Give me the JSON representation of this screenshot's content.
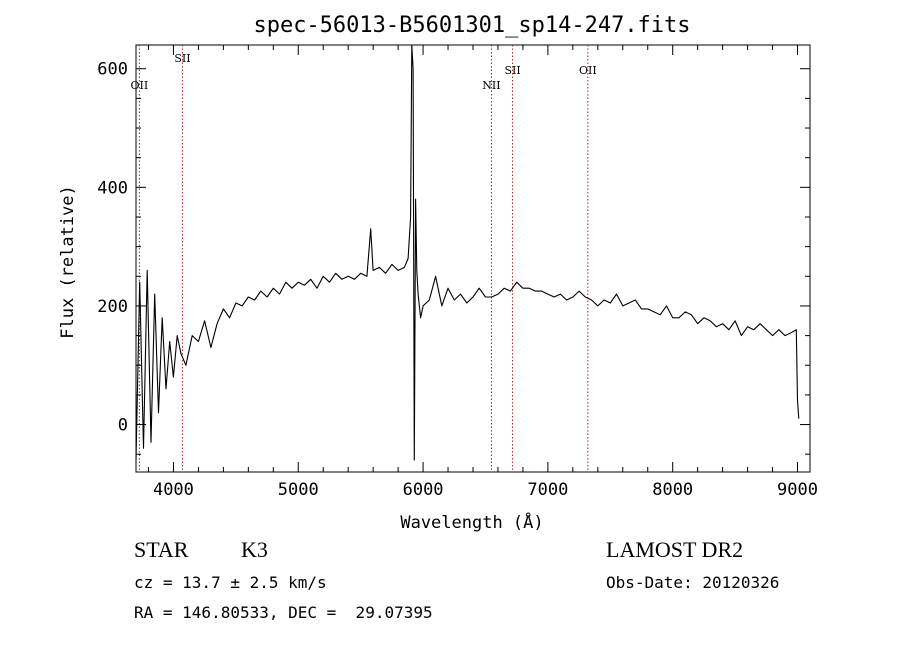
{
  "chart_data": {
    "type": "line",
    "title": "spec-56013-B5601301_sp14-247.fits",
    "xlabel": "Wavelength (Å)",
    "ylabel": "Flux (relative)",
    "xlim": [
      3700,
      9100
    ],
    "ylim": [
      -80,
      640
    ],
    "x_ticks": [
      4000,
      5000,
      6000,
      7000,
      8000,
      9000
    ],
    "y_ticks": [
      0,
      200,
      400,
      600
    ],
    "grid": false,
    "series": [
      {
        "x": [
          3700,
          3730,
          3760,
          3790,
          3820,
          3850,
          3880,
          3910,
          3940,
          3970,
          4000,
          4030,
          4060,
          4100,
          4150,
          4200,
          4250,
          4300,
          4350,
          4400,
          4450,
          4500,
          4550,
          4600,
          4650,
          4700,
          4750,
          4800,
          4850,
          4900,
          4950,
          5000,
          5050,
          5100,
          5150,
          5200,
          5250,
          5300,
          5350,
          5400,
          5450,
          5500,
          5550,
          5580,
          5600,
          5650,
          5700,
          5750,
          5800,
          5850,
          5880,
          5900,
          5910,
          5920,
          5930,
          5940,
          5950,
          5960,
          5980,
          6000,
          6050,
          6100,
          6150,
          6200,
          6250,
          6300,
          6350,
          6400,
          6450,
          6500,
          6550,
          6600,
          6650,
          6700,
          6750,
          6800,
          6850,
          6900,
          6950,
          7000,
          7050,
          7100,
          7150,
          7200,
          7250,
          7300,
          7350,
          7400,
          7450,
          7500,
          7550,
          7600,
          7650,
          7700,
          7750,
          7800,
          7850,
          7900,
          7950,
          8000,
          8050,
          8100,
          8150,
          8200,
          8250,
          8300,
          8350,
          8400,
          8450,
          8500,
          8550,
          8600,
          8650,
          8700,
          8750,
          8800,
          8850,
          8900,
          8950,
          8990,
          9000,
          9010
        ],
        "y": [
          -60,
          240,
          -40,
          260,
          -30,
          220,
          20,
          180,
          60,
          140,
          80,
          150,
          120,
          100,
          150,
          140,
          175,
          130,
          170,
          195,
          180,
          205,
          200,
          215,
          210,
          225,
          215,
          230,
          220,
          240,
          230,
          240,
          235,
          245,
          230,
          250,
          240,
          255,
          245,
          250,
          245,
          255,
          250,
          330,
          260,
          265,
          255,
          270,
          260,
          265,
          280,
          350,
          640,
          600,
          -60,
          380,
          260,
          220,
          180,
          200,
          210,
          250,
          200,
          230,
          210,
          220,
          205,
          215,
          230,
          215,
          215,
          220,
          230,
          225,
          240,
          230,
          230,
          225,
          225,
          220,
          215,
          220,
          210,
          215,
          225,
          215,
          210,
          200,
          210,
          205,
          220,
          200,
          205,
          210,
          195,
          195,
          190,
          185,
          200,
          180,
          180,
          190,
          185,
          170,
          180,
          175,
          165,
          170,
          160,
          175,
          150,
          165,
          160,
          170,
          160,
          150,
          160,
          150,
          155,
          160,
          40,
          10
        ]
      }
    ],
    "emission_lines": [
      {
        "label": "OII",
        "x": 3727,
        "label_y": 566
      },
      {
        "label": "SII",
        "x": 4072,
        "label_y": 611
      },
      {
        "label": "NII",
        "x": 6548,
        "label_y": 566
      },
      {
        "label": "SII",
        "x": 6717,
        "label_y": 591
      },
      {
        "label": "OII",
        "x": 7320,
        "label_y": 591
      }
    ],
    "colors": {
      "spectrum": "#000000",
      "lines": "#b22222",
      "frame": "#000000"
    }
  },
  "info": {
    "object_class": "STAR",
    "subclass": "K3",
    "redshift": "cz = 13.7 ± 2.5 km/s",
    "coords": "RA = 146.80533, DEC =  29.07395",
    "survey": "LAMOST DR2",
    "obs_date": "Obs-Date: 20120326"
  }
}
